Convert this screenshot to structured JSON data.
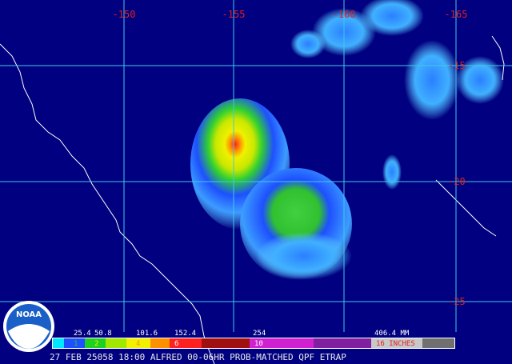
{
  "map": {
    "lon_labels": [
      "-150",
      "-155",
      "-160",
      "-165"
    ],
    "lat_labels": [
      "-15",
      "-20",
      "-25"
    ],
    "legend": {
      "mm_labels": [
        "25.4",
        "50.8",
        "101.6",
        "152.4",
        "254",
        "406.4 MM"
      ],
      "inch_labels": [
        "1",
        "2",
        "4",
        "6",
        "10",
        "16 INCHES"
      ]
    },
    "logo": "NOAA",
    "caption": "27 FEB 25058 18:00 ALFRED 00-06HR PROB-MATCHED QPF ETRAP"
  }
}
